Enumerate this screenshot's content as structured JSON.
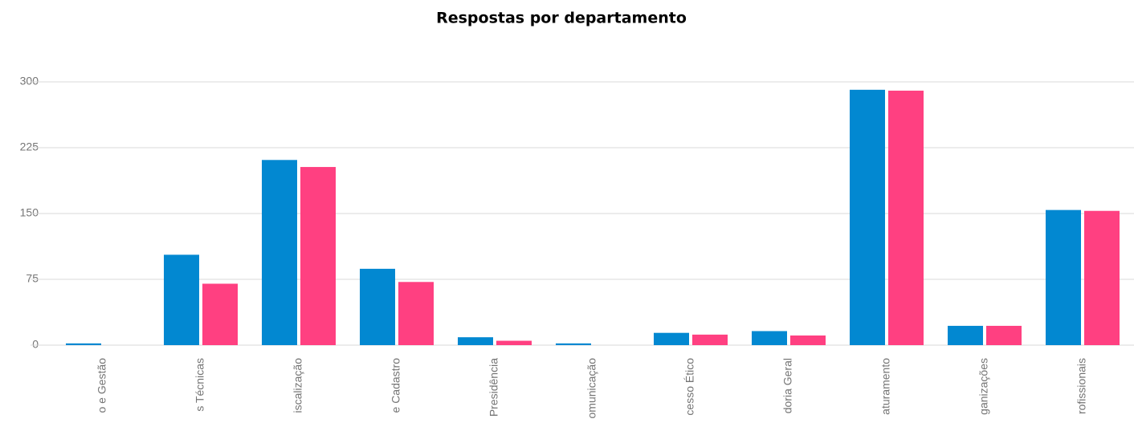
{
  "chart_data": {
    "type": "bar",
    "title": "Respostas por departamento",
    "categories": [
      "o e Gestão",
      "s Técnicas",
      "iscalização",
      "e Cadastro",
      "Presidência",
      "omunicação",
      "cesso Ético",
      "doria Geral",
      "aturamento",
      "ganizações",
      "rofissionais"
    ],
    "series": [
      {
        "color": "#0288d1",
        "values": [
          2,
          103,
          211,
          87,
          9,
          2,
          14,
          16,
          291,
          22,
          154
        ]
      },
      {
        "color": "#ff4081",
        "values": [
          0,
          70,
          203,
          72,
          5,
          0,
          12,
          11,
          290,
          22,
          153
        ]
      }
    ],
    "ylim": [
      0,
      300
    ],
    "yticks": [
      0,
      75,
      150,
      225,
      300
    ],
    "grid": true
  }
}
